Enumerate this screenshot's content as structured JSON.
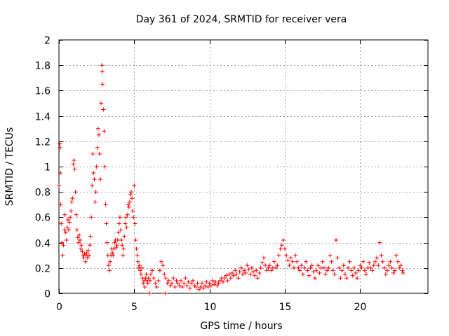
{
  "chart_data": {
    "type": "scatter",
    "title": "Day 361 of 2024, SRMTID for receiver vera",
    "xlabel": "GPS time / hours",
    "ylabel": "SRMTID / TECUs",
    "xlim": [
      0,
      24.5
    ],
    "ylim": [
      0,
      2
    ],
    "xticks": [
      0,
      5,
      10,
      15,
      20
    ],
    "xtick_labels": [
      "0",
      "5",
      "10",
      "15",
      "20"
    ],
    "yticks": [
      0,
      0.2,
      0.4,
      0.6,
      0.8,
      1,
      1.2,
      1.4,
      1.6,
      1.8,
      2
    ],
    "ytick_labels": [
      "0",
      "0.2",
      "0.4",
      "0.6",
      "0.8",
      "1",
      "1.2",
      "1.4",
      "1.6",
      "1.8",
      "2"
    ],
    "grid": true,
    "marker": "+",
    "color": "#ff0000",
    "series": [
      {
        "name": "SRMTID",
        "points": [
          [
            0.0,
            0.85
          ],
          [
            0.05,
            1.18
          ],
          [
            0.08,
            1.15
          ],
          [
            0.1,
            0.95
          ],
          [
            0.12,
            0.7
          ],
          [
            0.15,
            0.55
          ],
          [
            0.2,
            0.4
          ],
          [
            0.25,
            0.3
          ],
          [
            0.3,
            0.38
          ],
          [
            0.35,
            0.5
          ],
          [
            0.4,
            0.62
          ],
          [
            0.45,
            0.48
          ],
          [
            0.5,
            0.42
          ],
          [
            0.55,
            0.52
          ],
          [
            0.6,
            0.58
          ],
          [
            0.65,
            0.5
          ],
          [
            0.7,
            0.56
          ],
          [
            0.75,
            0.6
          ],
          [
            0.8,
            0.65
          ],
          [
            0.85,
            0.72
          ],
          [
            0.9,
            0.75
          ],
          [
            0.95,
            1.02
          ],
          [
            1.0,
            1.05
          ],
          [
            1.05,
            0.98
          ],
          [
            1.1,
            0.8
          ],
          [
            1.15,
            0.62
          ],
          [
            1.2,
            0.5
          ],
          [
            1.25,
            0.44
          ],
          [
            1.3,
            0.4
          ],
          [
            1.35,
            0.46
          ],
          [
            1.4,
            0.42
          ],
          [
            1.45,
            0.35
          ],
          [
            1.5,
            0.38
          ],
          [
            1.55,
            0.33
          ],
          [
            1.6,
            0.3
          ],
          [
            1.65,
            0.28
          ],
          [
            1.7,
            0.31
          ],
          [
            1.75,
            0.25
          ],
          [
            1.8,
            0.3
          ],
          [
            1.85,
            0.32
          ],
          [
            1.9,
            0.28
          ],
          [
            1.95,
            0.34
          ],
          [
            2.0,
            0.3
          ],
          [
            2.05,
            0.38
          ],
          [
            2.1,
            0.45
          ],
          [
            2.15,
            0.6
          ],
          [
            2.2,
            0.85
          ],
          [
            2.25,
            1.1
          ],
          [
            2.3,
            0.95
          ],
          [
            2.35,
            0.9
          ],
          [
            2.4,
            0.72
          ],
          [
            2.45,
            0.8
          ],
          [
            2.5,
            1.0
          ],
          [
            2.55,
            1.15
          ],
          [
            2.6,
            1.3
          ],
          [
            2.65,
            1.25
          ],
          [
            2.7,
            1.1
          ],
          [
            2.75,
            0.9
          ],
          [
            2.8,
            1.5
          ],
          [
            2.85,
            1.8
          ],
          [
            2.88,
            1.75
          ],
          [
            2.9,
            1.65
          ],
          [
            2.95,
            1.45
          ],
          [
            3.0,
            1.28
          ],
          [
            3.05,
            1.0
          ],
          [
            3.1,
            0.7
          ],
          [
            3.15,
            0.55
          ],
          [
            3.2,
            0.4
          ],
          [
            3.25,
            0.3
          ],
          [
            3.3,
            0.22
          ],
          [
            3.35,
            0.18
          ],
          [
            3.4,
            0.25
          ],
          [
            3.45,
            0.3
          ],
          [
            3.5,
            0.35
          ],
          [
            3.55,
            0.32
          ],
          [
            3.6,
            0.3
          ],
          [
            3.65,
            0.35
          ],
          [
            3.7,
            0.4
          ],
          [
            3.75,
            0.42
          ],
          [
            3.8,
            0.36
          ],
          [
            3.85,
            0.38
          ],
          [
            3.9,
            0.42
          ],
          [
            3.95,
            0.48
          ],
          [
            4.0,
            0.55
          ],
          [
            4.05,
            0.6
          ],
          [
            4.1,
            0.5
          ],
          [
            4.15,
            0.42
          ],
          [
            4.2,
            0.38
          ],
          [
            4.25,
            0.3
          ],
          [
            4.3,
            0.35
          ],
          [
            4.35,
            0.45
          ],
          [
            4.4,
            0.55
          ],
          [
            4.45,
            0.6
          ],
          [
            4.5,
            0.52
          ],
          [
            4.55,
            0.62
          ],
          [
            4.6,
            0.7
          ],
          [
            4.65,
            0.68
          ],
          [
            4.7,
            0.72
          ],
          [
            4.75,
            0.78
          ],
          [
            4.8,
            0.8
          ],
          [
            4.85,
            0.75
          ],
          [
            4.9,
            0.65
          ],
          [
            4.95,
            0.6
          ],
          [
            5.0,
            0.85
          ],
          [
            5.05,
            0.55
          ],
          [
            5.1,
            0.42
          ],
          [
            5.15,
            0.35
          ],
          [
            5.2,
            0.3
          ],
          [
            5.25,
            0.25
          ],
          [
            5.3,
            0.2
          ],
          [
            5.35,
            0.22
          ],
          [
            5.4,
            0.18
          ],
          [
            5.45,
            0.15
          ],
          [
            5.5,
            0.2
          ],
          [
            5.55,
            0.12
          ],
          [
            5.6,
            0.08
          ],
          [
            5.65,
            0.1
          ],
          [
            5.7,
            0.05
          ],
          [
            5.75,
            0.12
          ],
          [
            5.8,
            0.15
          ],
          [
            5.85,
            0.1
          ],
          [
            5.9,
            0.08
          ],
          [
            5.95,
            0.12
          ],
          [
            6.0,
            0.0
          ],
          [
            6.05,
            0.1
          ],
          [
            6.1,
            0.15
          ],
          [
            6.2,
            0.18
          ],
          [
            6.3,
            0.12
          ],
          [
            6.4,
            0.08
          ],
          [
            6.5,
            0.05
          ],
          [
            6.6,
            0.1
          ],
          [
            6.7,
            0.18
          ],
          [
            6.8,
            0.25
          ],
          [
            6.9,
            0.22
          ],
          [
            7.0,
            0.15
          ],
          [
            7.05,
            0.0
          ],
          [
            7.1,
            0.12
          ],
          [
            7.2,
            0.08
          ],
          [
            7.3,
            0.1
          ],
          [
            7.4,
            0.06
          ],
          [
            7.5,
            0.08
          ],
          [
            7.6,
            0.12
          ],
          [
            7.7,
            0.05
          ],
          [
            7.8,
            0.1
          ],
          [
            7.9,
            0.08
          ],
          [
            8.0,
            0.06
          ],
          [
            8.1,
            0.1
          ],
          [
            8.2,
            0.05
          ],
          [
            8.3,
            0.08
          ],
          [
            8.4,
            0.12
          ],
          [
            8.5,
            0.06
          ],
          [
            8.6,
            0.09
          ],
          [
            8.7,
            0.04
          ],
          [
            8.8,
            0.08
          ],
          [
            8.9,
            0.1
          ],
          [
            9.0,
            0.06
          ],
          [
            9.1,
            0.05
          ],
          [
            9.2,
            0.08
          ],
          [
            9.3,
            0.03
          ],
          [
            9.4,
            0.05
          ],
          [
            9.5,
            0.08
          ],
          [
            9.6,
            0.04
          ],
          [
            9.7,
            0.06
          ],
          [
            9.8,
            0.09
          ],
          [
            9.9,
            0.05
          ],
          [
            10.0,
            0.08
          ],
          [
            10.1,
            0.06
          ],
          [
            10.2,
            0.1
          ],
          [
            10.3,
            0.07
          ],
          [
            10.4,
            0.09
          ],
          [
            10.5,
            0.06
          ],
          [
            10.6,
            0.08
          ],
          [
            10.7,
            0.1
          ],
          [
            10.8,
            0.12
          ],
          [
            10.9,
            0.09
          ],
          [
            11.0,
            0.12
          ],
          [
            11.1,
            0.14
          ],
          [
            11.2,
            0.1
          ],
          [
            11.3,
            0.15
          ],
          [
            11.4,
            0.12
          ],
          [
            11.5,
            0.16
          ],
          [
            11.6,
            0.14
          ],
          [
            11.7,
            0.18
          ],
          [
            11.8,
            0.15
          ],
          [
            11.9,
            0.12
          ],
          [
            12.0,
            0.17
          ],
          [
            12.1,
            0.2
          ],
          [
            12.2,
            0.15
          ],
          [
            12.3,
            0.18
          ],
          [
            12.4,
            0.16
          ],
          [
            12.5,
            0.22
          ],
          [
            12.6,
            0.19
          ],
          [
            12.7,
            0.15
          ],
          [
            12.8,
            0.2
          ],
          [
            12.9,
            0.17
          ],
          [
            13.0,
            0.14
          ],
          [
            13.1,
            0.18
          ],
          [
            13.2,
            0.12
          ],
          [
            13.3,
            0.16
          ],
          [
            13.4,
            0.2
          ],
          [
            13.5,
            0.24
          ],
          [
            13.6,
            0.28
          ],
          [
            13.7,
            0.22
          ],
          [
            13.8,
            0.18
          ],
          [
            13.9,
            0.2
          ],
          [
            14.0,
            0.22
          ],
          [
            14.1,
            0.18
          ],
          [
            14.2,
            0.2
          ],
          [
            14.3,
            0.25
          ],
          [
            14.4,
            0.2
          ],
          [
            14.5,
            0.22
          ],
          [
            14.6,
            0.3
          ],
          [
            14.7,
            0.35
          ],
          [
            14.8,
            0.38
          ],
          [
            14.9,
            0.42
          ],
          [
            15.0,
            0.35
          ],
          [
            15.1,
            0.3
          ],
          [
            15.2,
            0.26
          ],
          [
            15.3,
            0.22
          ],
          [
            15.4,
            0.28
          ],
          [
            15.5,
            0.25
          ],
          [
            15.6,
            0.2
          ],
          [
            15.7,
            0.3
          ],
          [
            15.8,
            0.25
          ],
          [
            15.9,
            0.2
          ],
          [
            16.0,
            0.18
          ],
          [
            16.1,
            0.22
          ],
          [
            16.2,
            0.15
          ],
          [
            16.3,
            0.2
          ],
          [
            16.4,
            0.25
          ],
          [
            16.5,
            0.18
          ],
          [
            16.6,
            0.14
          ],
          [
            16.7,
            0.2
          ],
          [
            16.8,
            0.22
          ],
          [
            16.9,
            0.17
          ],
          [
            17.0,
            0.12
          ],
          [
            17.1,
            0.18
          ],
          [
            17.2,
            0.22
          ],
          [
            17.3,
            0.16
          ],
          [
            17.4,
            0.2
          ],
          [
            17.5,
            0.25
          ],
          [
            17.6,
            0.2
          ],
          [
            17.7,
            0.15
          ],
          [
            17.8,
            0.18
          ],
          [
            17.9,
            0.2
          ],
          [
            18.0,
            0.3
          ],
          [
            18.1,
            0.25
          ],
          [
            18.2,
            0.18
          ],
          [
            18.3,
            0.15
          ],
          [
            18.4,
            0.42
          ],
          [
            18.5,
            0.28
          ],
          [
            18.6,
            0.2
          ],
          [
            18.7,
            0.12
          ],
          [
            18.8,
            0.18
          ],
          [
            18.9,
            0.22
          ],
          [
            19.0,
            0.15
          ],
          [
            19.1,
            0.12
          ],
          [
            19.2,
            0.2
          ],
          [
            19.3,
            0.25
          ],
          [
            19.4,
            0.18
          ],
          [
            19.5,
            0.14
          ],
          [
            19.6,
            0.2
          ],
          [
            19.7,
            0.16
          ],
          [
            19.8,
            0.12
          ],
          [
            19.9,
            0.18
          ],
          [
            20.0,
            0.22
          ],
          [
            20.1,
            0.2
          ],
          [
            20.2,
            0.25
          ],
          [
            20.3,
            0.18
          ],
          [
            20.4,
            0.15
          ],
          [
            20.5,
            0.2
          ],
          [
            20.6,
            0.24
          ],
          [
            20.7,
            0.2
          ],
          [
            20.8,
            0.18
          ],
          [
            20.9,
            0.22
          ],
          [
            21.0,
            0.25
          ],
          [
            21.1,
            0.28
          ],
          [
            21.2,
            0.22
          ],
          [
            21.3,
            0.4
          ],
          [
            21.4,
            0.3
          ],
          [
            21.5,
            0.25
          ],
          [
            21.6,
            0.2
          ],
          [
            21.7,
            0.15
          ],
          [
            21.8,
            0.18
          ],
          [
            21.9,
            0.22
          ],
          [
            22.0,
            0.25
          ],
          [
            22.1,
            0.2
          ],
          [
            22.2,
            0.16
          ],
          [
            22.3,
            0.18
          ],
          [
            22.4,
            0.3
          ],
          [
            22.5,
            0.25
          ],
          [
            22.6,
            0.2
          ],
          [
            22.7,
            0.22
          ],
          [
            22.8,
            0.18
          ],
          [
            22.85,
            0.16
          ]
        ]
      }
    ]
  }
}
